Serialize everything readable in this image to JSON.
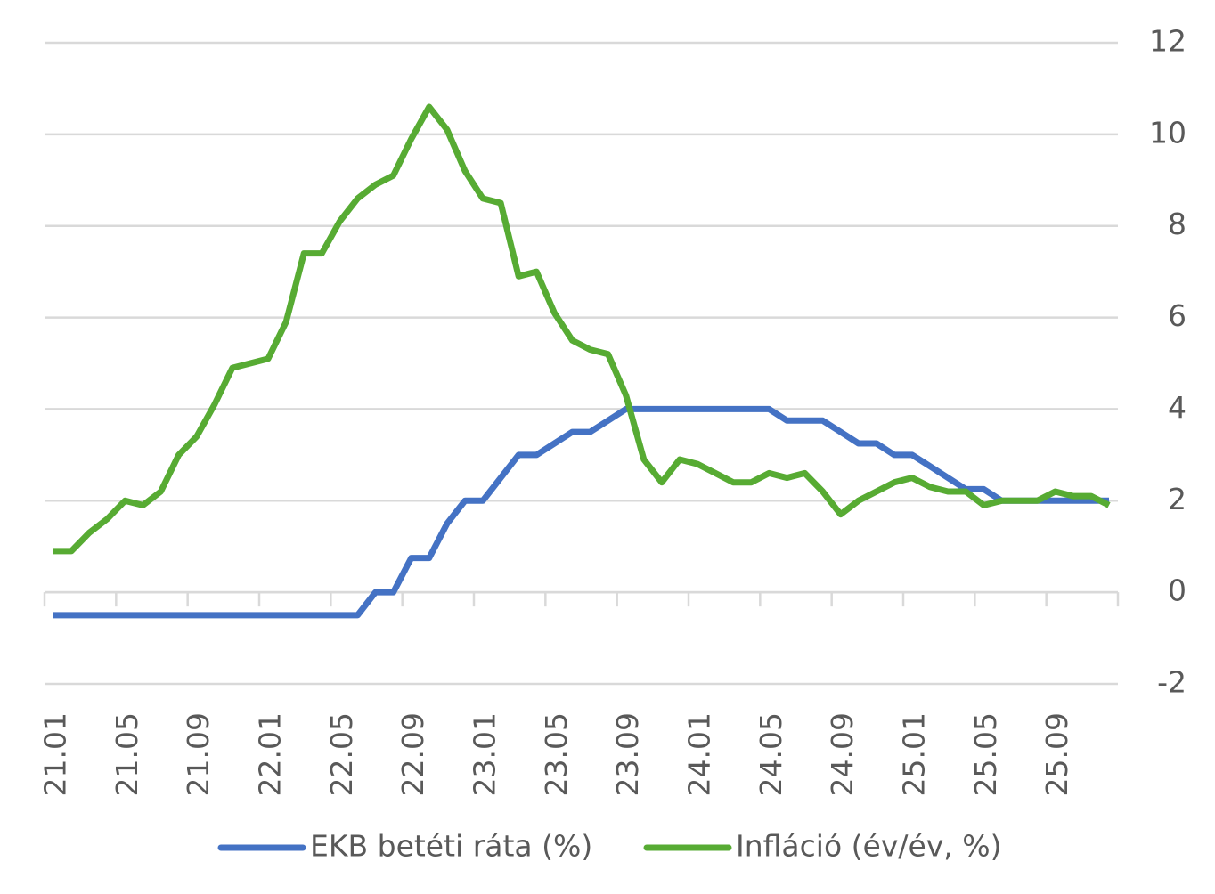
{
  "chart_data": {
    "type": "line",
    "categories": [
      "21.01",
      null,
      null,
      null,
      "21.05",
      null,
      null,
      null,
      "21.09",
      null,
      null,
      null,
      "22.01",
      null,
      null,
      null,
      "22.05",
      null,
      null,
      null,
      "22.09",
      null,
      null,
      null,
      "23.01",
      null,
      null,
      null,
      "23.05",
      null,
      null,
      null,
      "23.09",
      null,
      null,
      null,
      "24.01",
      null,
      null,
      null,
      "24.05",
      null,
      null,
      null,
      "24.09",
      null,
      null,
      null,
      "25.01",
      null,
      null,
      null,
      "25.05",
      null,
      null,
      null,
      "25.09",
      null,
      null,
      null
    ],
    "series": [
      {
        "name": "EKB betéti ráta (%)",
        "color": "#4472c4",
        "values": [
          -0.5,
          -0.5,
          -0.5,
          -0.5,
          -0.5,
          -0.5,
          -0.5,
          -0.5,
          -0.5,
          -0.5,
          -0.5,
          -0.5,
          -0.5,
          -0.5,
          -0.5,
          -0.5,
          -0.5,
          -0.5,
          0,
          0,
          0.75,
          0.75,
          1.5,
          2,
          2,
          2.5,
          3,
          3,
          3.25,
          3.5,
          3.5,
          3.75,
          4,
          4,
          4,
          4,
          4,
          4,
          4,
          4,
          4,
          3.75,
          3.75,
          3.75,
          3.5,
          3.25,
          3.25,
          3,
          3,
          2.75,
          2.5,
          2.25,
          2.25,
          2,
          2,
          2,
          2,
          2,
          2,
          2
        ]
      },
      {
        "name": "Infláció (év/év, %)",
        "color": "#57ab33",
        "values": [
          0.9,
          0.9,
          1.3,
          1.6,
          2.0,
          1.9,
          2.2,
          3.0,
          3.4,
          4.1,
          4.9,
          5.0,
          5.1,
          5.9,
          7.4,
          7.4,
          8.1,
          8.6,
          8.9,
          9.1,
          9.9,
          10.6,
          10.1,
          9.2,
          8.6,
          8.5,
          6.9,
          7.0,
          6.1,
          5.5,
          5.3,
          5.2,
          4.3,
          2.9,
          2.4,
          2.9,
          2.8,
          2.6,
          2.4,
          2.4,
          2.6,
          2.5,
          2.6,
          2.2,
          1.7,
          2.0,
          2.2,
          2.4,
          2.5,
          2.3,
          2.2,
          2.2,
          1.9,
          2.0,
          2.0,
          2.0,
          2.2,
          2.1,
          2.1,
          1.9
        ]
      }
    ],
    "ylim": [
      -2,
      12
    ],
    "yticks": [
      -2,
      0,
      2,
      4,
      6,
      8,
      10,
      12
    ],
    "grid": true,
    "legend": "bottom"
  }
}
